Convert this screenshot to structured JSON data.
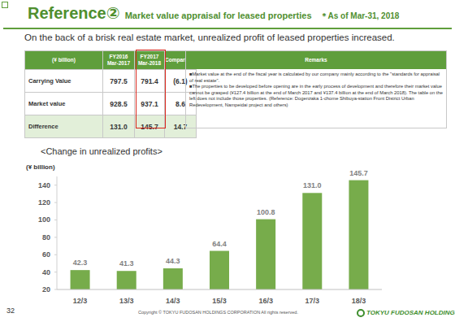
{
  "header": {
    "title": "Reference②",
    "subtitle": "Market value appraisal for leased properties",
    "note": "＊As of Mar-31, 2018",
    "lead": "On the back of a brisk real estate market, unrealized profit of leased properties increased."
  },
  "table": {
    "columns": [
      [
        "(¥ billion)"
      ],
      [
        "FY2016",
        "Mar-2017"
      ],
      [
        "FY2017",
        "Mar-2018"
      ],
      [
        "Comparison"
      ]
    ],
    "rows": [
      [
        "Carrying Value",
        "797.5",
        "791.4",
        "(6.1)"
      ],
      [
        "Market value",
        "928.5",
        "937.1",
        "8.6"
      ],
      [
        "Difference",
        "131.0",
        "145.7",
        "14.7"
      ]
    ]
  },
  "remarks": {
    "title": "Remarks",
    "items": [
      "■Market value at the end of the fiscal year is calculated by our company mainly according to the \"standards for appraisal of real estate\".",
      "■The properties to be developed before opening are in the early process of development and therefore their market value cannot be grasped (¥127.4 billion at the end of March 2017 and ¥137.4 billion at the end of March 2018). The table on the left does not include those properties. (Reference: Dogenzaka 1-chome Shibuya-station Front District Urban Redevelopment, Nampeidai project and others)"
    ]
  },
  "chart_data": {
    "type": "bar",
    "title": "<Change in unrealized profits>",
    "ylabel": "(¥ billion)",
    "categories": [
      "12/3",
      "13/3",
      "14/3",
      "15/3",
      "16/3",
      "17/3",
      "18/3"
    ],
    "values": [
      42.3,
      41.3,
      44.3,
      64.4,
      100.8,
      131.0,
      145.7
    ],
    "value_labels": [
      "42.3",
      "41.3",
      "44.3",
      "64.4",
      "100.8",
      "131.0",
      "145.7"
    ],
    "color": "#77ac4b",
    "ylim": [
      20,
      150
    ],
    "yticks": [
      20,
      40,
      60,
      80,
      100,
      120,
      140
    ],
    "grid": false,
    "data_labels": true
  },
  "footer": {
    "page": "32",
    "copyright": "Copyright © TOKYU FUDOSAN HOLDINGS CORPORATION All rights reserved.",
    "brand": "TOKYU FUDOSAN HOLDINGS"
  }
}
